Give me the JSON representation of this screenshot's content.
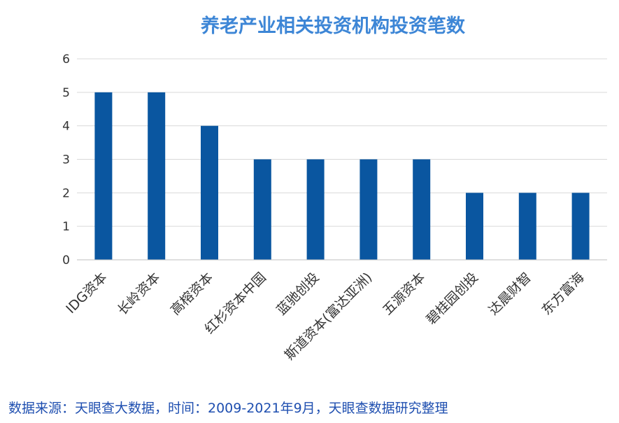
{
  "colors": {
    "bar": "#0a56a0",
    "title": "#3d86d6",
    "source": "#1f4fb0",
    "grid": "#d9d9d9",
    "axis": "#bfbfbf"
  },
  "chart_data": {
    "type": "bar",
    "title": "养老产业相关投资机构投资笔数",
    "xlabel": "",
    "ylabel": "",
    "categories": [
      "IDG资本",
      "长岭资本",
      "高榕资本",
      "红杉资本中国",
      "蓝驰创投",
      "斯道资本(富达亚洲)",
      "五源资本",
      "碧桂园创投",
      "达晨财智",
      "东方富海"
    ],
    "values": [
      5,
      5,
      4,
      3,
      3,
      3,
      3,
      2,
      2,
      2
    ],
    "ylim": [
      0,
      6
    ],
    "yticks": [
      0,
      1,
      2,
      3,
      4,
      5,
      6
    ],
    "grid": true,
    "legend": "none"
  },
  "source_note": "数据来源：天眼查大数据，时间：2009-2021年9月，天眼查数据研究整理"
}
